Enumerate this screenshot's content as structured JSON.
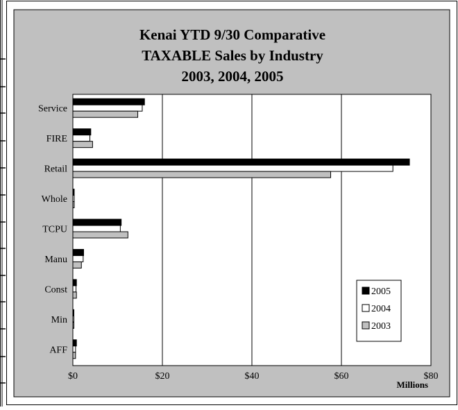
{
  "chart_data": {
    "type": "bar",
    "orientation": "horizontal",
    "title_lines": [
      "Kenai YTD 9/30 Comparative",
      "TAXABLE Sales by Industry",
      "2003, 2004, 2005"
    ],
    "categories": [
      "Service",
      "FIRE",
      "Retail",
      "Whole",
      "TCPU",
      "Manu",
      "Const",
      "Min",
      "AFF"
    ],
    "series": [
      {
        "name": "2005",
        "color": "#000000",
        "values": [
          16.0,
          4.0,
          75.2,
          0.3,
          10.8,
          2.4,
          0.8,
          0.2,
          0.8
        ]
      },
      {
        "name": "2004",
        "color": "#ffffff",
        "values": [
          15.5,
          3.8,
          71.5,
          0.3,
          10.6,
          2.3,
          0.7,
          0.2,
          0.6
        ]
      },
      {
        "name": "2003",
        "color": "#c0c0c0",
        "values": [
          14.5,
          4.4,
          57.6,
          0.3,
          12.3,
          1.9,
          0.8,
          0.2,
          0.6
        ]
      }
    ],
    "xlim": [
      0,
      80
    ],
    "x_ticks": [
      "$0",
      "$20",
      "$40",
      "$60",
      "$80"
    ],
    "x_unit_label": "Millions",
    "grid": "vertical",
    "legend_position": "bottom-right"
  }
}
